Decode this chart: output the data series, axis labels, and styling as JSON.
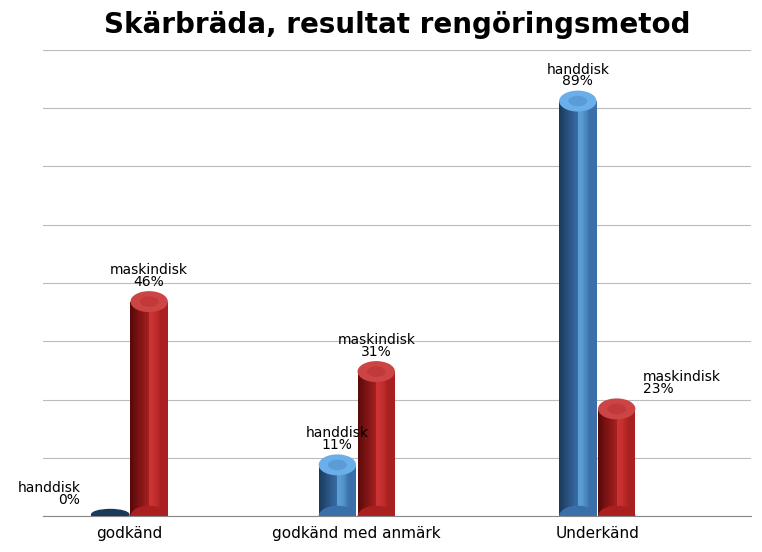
{
  "title": "Skärbräda, resultat rengöringsmetod",
  "categories": [
    "godkänd",
    "godkänd med anmärk",
    "Underkänd"
  ],
  "handdisk_values": [
    0,
    11,
    89
  ],
  "maskindisk_values": [
    46,
    31,
    23
  ],
  "handdisk_color_body": "#3a6faa",
  "handdisk_color_highlight": "#5a9fd4",
  "handdisk_color_top": "#6aafea",
  "handdisk_color_dark": "#1a3a5c",
  "maskindisk_color_body": "#aa2020",
  "maskindisk_color_highlight": "#cc3333",
  "maskindisk_color_top": "#cc4444",
  "maskindisk_color_dark": "#5a0a0a",
  "background_color": "#ffffff",
  "grid_color": "#bbbbbb",
  "title_fontsize": 20,
  "label_fontsize": 10,
  "tick_fontsize": 11,
  "ylim": [
    0,
    100
  ],
  "bar_width": 0.28,
  "ellipse_ratio": 0.18,
  "group_centers": [
    0.85,
    2.55,
    4.35
  ],
  "xlim": [
    0.2,
    5.5
  ],
  "n_gridlines": 8
}
